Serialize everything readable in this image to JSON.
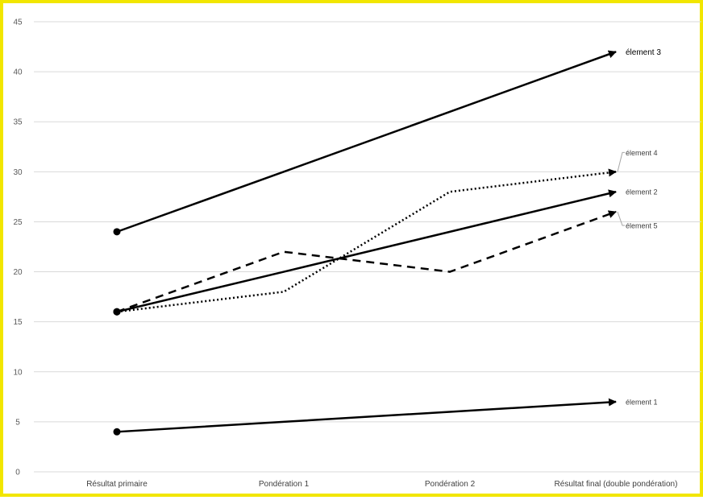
{
  "chart_data": {
    "type": "line",
    "categories": [
      "Résultat primaire",
      "Pondération 1",
      "Pondération 2",
      "Résultat final (double pondération)"
    ],
    "ylim": [
      0,
      45
    ],
    "yticks": [
      0,
      5,
      10,
      15,
      20,
      25,
      30,
      35,
      40,
      45
    ],
    "grid": true,
    "legend": "none",
    "title": "",
    "xlabel": "",
    "ylabel": "",
    "series": [
      {
        "name": "élement 1",
        "style": "solid",
        "values": [
          4,
          5,
          6,
          7
        ]
      },
      {
        "name": "élement 2",
        "style": "solid",
        "values": [
          16,
          20,
          24,
          28
        ]
      },
      {
        "name": "élement 3",
        "style": "solid",
        "values": [
          24,
          30,
          36,
          42
        ]
      },
      {
        "name": "élement 4",
        "style": "dotted",
        "values": [
          16,
          18,
          28,
          30
        ]
      },
      {
        "name": "élement 5",
        "style": "dashed",
        "values": [
          16,
          22,
          20,
          26
        ]
      }
    ]
  },
  "colors": {
    "frame": "#f2e600",
    "line": "#000000",
    "grid": "#d9d9d9"
  }
}
